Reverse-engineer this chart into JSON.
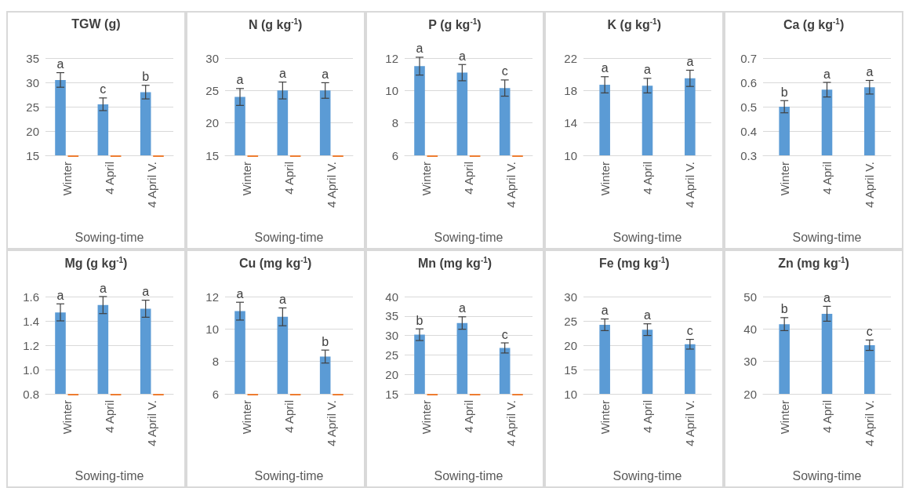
{
  "chart_data": [
    {
      "type": "bar",
      "title": "TGW (g)",
      "xlabel": "Sowing-time",
      "categories": [
        "Winter",
        "4 April",
        "4 April V."
      ],
      "ylim": [
        15,
        35
      ],
      "yticks": [
        15,
        20,
        25,
        30,
        35
      ],
      "grid": "y",
      "series": [
        {
          "color": "#5b9bd5",
          "values": [
            30.5,
            25.5,
            28
          ],
          "errors": [
            1.5,
            1.3,
            1.4
          ]
        },
        {
          "color": "#ed7d31",
          "values": [
            15,
            15,
            15
          ]
        }
      ],
      "annotations": [
        {
          "text": "a",
          "x": "Winter",
          "y": 32
        },
        {
          "text": "c",
          "x": "4 April",
          "y": 26.8
        },
        {
          "text": "b",
          "x": "4 April V.",
          "y": 29.4
        }
      ]
    },
    {
      "type": "bar",
      "title": "N (g kg$^{-1}$)",
      "xlabel": "Sowing-time",
      "categories": [
        "Winter",
        "4 April",
        "4 April V."
      ],
      "ylim": [
        15,
        30
      ],
      "yticks": [
        15,
        20,
        25,
        30
      ],
      "grid": "y",
      "series": [
        {
          "color": "#5b9bd5",
          "values": [
            24,
            25,
            25
          ],
          "errors": [
            1.3,
            1.3,
            1.2
          ]
        },
        {
          "color": "#ed7d31",
          "values": [
            15,
            15,
            15
          ]
        }
      ],
      "annotations": [
        {
          "text": "a",
          "x": "Winter",
          "y": 25.3
        },
        {
          "text": "a",
          "x": "4 April",
          "y": 26.3
        },
        {
          "text": "a",
          "x": "4 April V.",
          "y": 26.2
        }
      ]
    },
    {
      "type": "bar",
      "title": "P (g kg$^{-1}$)",
      "xlabel": "Sowing-time",
      "categories": [
        "Winter",
        "4 April",
        "4 April V."
      ],
      "ylim": [
        6,
        12
      ],
      "yticks": [
        6,
        8,
        10,
        12
      ],
      "grid": "y",
      "series": [
        {
          "color": "#5b9bd5",
          "values": [
            11.5,
            11.1,
            10.15
          ],
          "errors": [
            0.55,
            0.5,
            0.5
          ]
        },
        {
          "color": "#ed7d31",
          "values": [
            6,
            6,
            6
          ]
        }
      ],
      "annotations": [
        {
          "text": "a",
          "x": "Winter",
          "y": 12.05
        },
        {
          "text": "a",
          "x": "4 April",
          "y": 11.6
        },
        {
          "text": "c",
          "x": "4 April V.",
          "y": 10.65
        }
      ]
    },
    {
      "type": "bar",
      "title": "K (g kg$^{-1}$)",
      "xlabel": "Sowing-time",
      "categories": [
        "Winter",
        "4 April",
        "4 April V."
      ],
      "ylim": [
        10,
        22
      ],
      "yticks": [
        10,
        14,
        18,
        22
      ],
      "grid": "y",
      "series": [
        {
          "color": "#5b9bd5",
          "values": [
            18.7,
            18.6,
            19.5
          ],
          "errors": [
            1.0,
            0.9,
            1.0
          ]
        }
      ],
      "annotations": [
        {
          "text": "a",
          "x": "Winter",
          "y": 19.7
        },
        {
          "text": "a",
          "x": "4 April",
          "y": 19.5
        },
        {
          "text": "a",
          "x": "4 April V.",
          "y": 20.5
        }
      ]
    },
    {
      "type": "bar",
      "title": "Ca (g kg$^{-1}$)",
      "xlabel": "Sowing-time",
      "categories": [
        "Winter",
        "4 April",
        "4 April V."
      ],
      "ylim": [
        0.3,
        0.7
      ],
      "yticks": [
        0.3,
        0.4,
        0.5,
        0.6,
        0.7
      ],
      "grid": "y",
      "series": [
        {
          "color": "#5b9bd5",
          "values": [
            0.5,
            0.57,
            0.58
          ],
          "errors": [
            0.025,
            0.03,
            0.028
          ]
        }
      ],
      "annotations": [
        {
          "text": "b",
          "x": "Winter",
          "y": 0.525
        },
        {
          "text": "a",
          "x": "4 April",
          "y": 0.6
        },
        {
          "text": "a",
          "x": "4 April V.",
          "y": 0.608
        }
      ]
    },
    {
      "type": "bar",
      "title": "Mg (g kg$^{-1}$)",
      "xlabel": "Sowing-time",
      "categories": [
        "Winter",
        "4 April",
        "4 April V."
      ],
      "ylim": [
        0.8,
        1.6
      ],
      "yticks": [
        {
          "value": 0.8,
          "label": "0.8"
        },
        {
          "value": 1,
          "label": "1.0"
        },
        {
          "value": 1.2,
          "label": "1.2"
        },
        {
          "value": 1.4,
          "label": "1.4"
        },
        {
          "value": 1.6,
          "label": "1.6"
        }
      ],
      "grid": "y",
      "series": [
        {
          "color": "#5b9bd5",
          "values": [
            1.47,
            1.53,
            1.5
          ],
          "errors": [
            0.07,
            0.07,
            0.07
          ]
        },
        {
          "color": "#ed7d31",
          "values": [
            0.8,
            0.8,
            0.8
          ]
        }
      ],
      "annotations": [
        {
          "text": "a",
          "x": "Winter",
          "y": 1.54
        },
        {
          "text": "a",
          "x": "4 April",
          "y": 1.6
        },
        {
          "text": "a",
          "x": "4 April V.",
          "y": 1.57
        }
      ]
    },
    {
      "type": "bar",
      "title": "Cu (mg kg$^{-1}$)",
      "xlabel": "Sowing-time",
      "categories": [
        "Winter",
        "4 April",
        "4 April V."
      ],
      "ylim": [
        6,
        12
      ],
      "yticks": [
        6,
        8,
        10,
        12
      ],
      "grid": "y",
      "series": [
        {
          "color": "#5b9bd5",
          "values": [
            11.1,
            10.75,
            8.3
          ],
          "errors": [
            0.55,
            0.55,
            0.4
          ]
        },
        {
          "color": "#ed7d31",
          "values": [
            6,
            6,
            6
          ]
        }
      ],
      "annotations": [
        {
          "text": "a",
          "x": "Winter",
          "y": 11.65
        },
        {
          "text": "a",
          "x": "4 April",
          "y": 11.3
        },
        {
          "text": "b",
          "x": "4 April V.",
          "y": 8.7
        }
      ]
    },
    {
      "type": "bar",
      "title": "Mn (mg kg$^{-1}$)",
      "xlabel": "Sowing-time",
      "categories": [
        "Winter",
        "4 April",
        "4 April V."
      ],
      "ylim": [
        15,
        40
      ],
      "yticks": [
        15,
        20,
        25,
        30,
        35,
        40
      ],
      "grid": "y",
      "series": [
        {
          "color": "#5b9bd5",
          "values": [
            30.2,
            33.2,
            26.8
          ],
          "errors": [
            1.5,
            1.6,
            1.3
          ]
        },
        {
          "color": "#ed7d31",
          "values": [
            15,
            15,
            15
          ]
        }
      ],
      "annotations": [
        {
          "text": "b",
          "x": "Winter",
          "y": 31.7
        },
        {
          "text": "a",
          "x": "4 April",
          "y": 34.8
        },
        {
          "text": "c",
          "x": "4 April V.",
          "y": 28.1
        }
      ]
    },
    {
      "type": "bar",
      "title": "Fe (mg kg$^{-1}$)",
      "xlabel": "Sowing-time",
      "categories": [
        "Winter",
        "4 April",
        "4 April V."
      ],
      "ylim": [
        10,
        30
      ],
      "yticks": [
        10,
        15,
        20,
        25,
        30
      ],
      "grid": "y",
      "series": [
        {
          "color": "#5b9bd5",
          "values": [
            24.2,
            23.2,
            20.2
          ],
          "errors": [
            1.2,
            1.2,
            1.0
          ]
        }
      ],
      "annotations": [
        {
          "text": "a",
          "x": "Winter",
          "y": 25.4
        },
        {
          "text": "a",
          "x": "4 April",
          "y": 24.4
        },
        {
          "text": "c",
          "x": "4 April V.",
          "y": 21.2
        }
      ]
    },
    {
      "type": "bar",
      "title": "Zn (mg kg$^{-1}$)",
      "xlabel": "Sowing-time",
      "categories": [
        "Winter",
        "4 April",
        "4 April V."
      ],
      "ylim": [
        20,
        50
      ],
      "yticks": [
        20,
        30,
        40,
        50
      ],
      "grid": "y",
      "series": [
        {
          "color": "#5b9bd5",
          "values": [
            41.5,
            44.7,
            35
          ],
          "errors": [
            2,
            2.3,
            1.6
          ]
        }
      ],
      "annotations": [
        {
          "text": "b",
          "x": "Winter",
          "y": 43.5
        },
        {
          "text": "a",
          "x": "4 April",
          "y": 47
        },
        {
          "text": "c",
          "x": "4 April V.",
          "y": 36.6
        }
      ]
    }
  ]
}
